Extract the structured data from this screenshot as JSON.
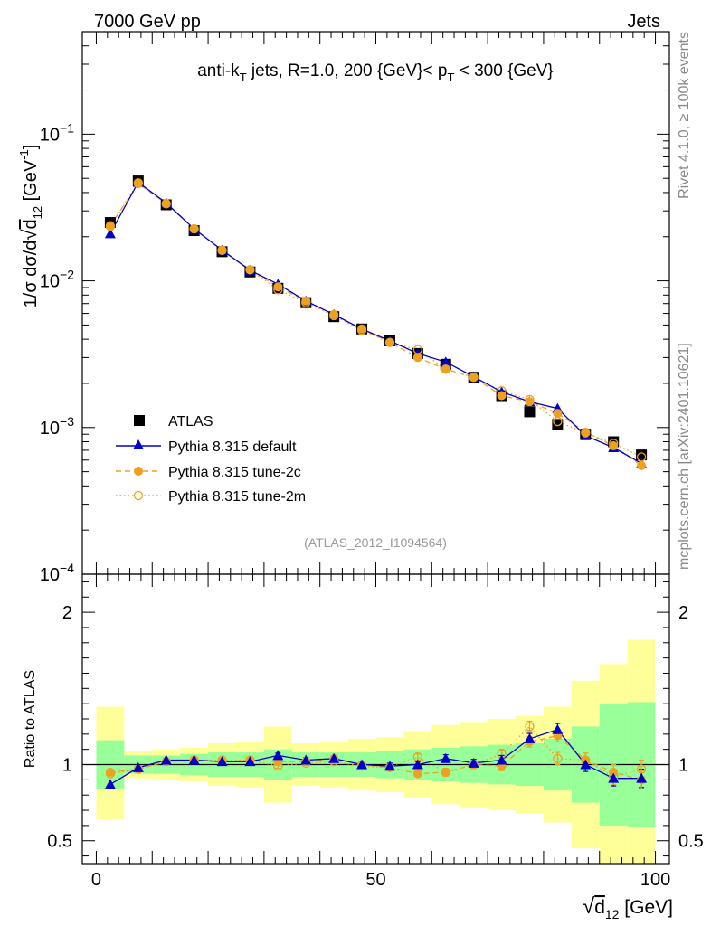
{
  "header": {
    "energy_label": "7000 GeV pp",
    "process_label": "Jets"
  },
  "side_labels": {
    "rivet": "Rivet 4.1.0, ≥ 100k events",
    "mcplots": "mcplots.cern.ch [arXiv:2401.10621]"
  },
  "chart_data": [
    {
      "type": "line",
      "panel": "main",
      "title": "anti-k_T jets, R=1.0, 200 {GeV}< p_T < 300 {GeV}",
      "title_parts": {
        "a": "anti-k",
        "a_sub": "T",
        "b": " jets, R=1.0, 200 {GeV}< p",
        "b_sub": "T",
        "c": " < 300 {GeV}"
      },
      "analysis_label": "(ATLAS_2012_I1094564)",
      "ylabel": "1/σ dσ/d√d12 [GeV⁻¹]",
      "ylabel_parts": {
        "lead": "1/σ dσ/d",
        "d": "d",
        "d_sub": "12",
        "unit": " [GeV",
        "unit_sup": "-1",
        "close": "]"
      },
      "yscale": "log",
      "ylim": [
        0.0001,
        0.5
      ],
      "xlim": [
        -2.5,
        102.5
      ],
      "y_tick_labels": [
        {
          "value": 0.1,
          "mant": "10",
          "exp": "−1"
        },
        {
          "value": 0.01,
          "mant": "10",
          "exp": "−2"
        },
        {
          "value": 0.001,
          "mant": "10",
          "exp": "−3"
        },
        {
          "value": 0.0001,
          "mant": "10",
          "exp": "−4"
        }
      ],
      "x": [
        2.5,
        7.5,
        12.5,
        17.5,
        22.5,
        27.5,
        32.5,
        37.5,
        42.5,
        47.5,
        52.5,
        57.5,
        62.5,
        67.5,
        72.5,
        77.5,
        82.5,
        87.5,
        92.5,
        97.5
      ],
      "legend_position": "lower-left",
      "series": [
        {
          "name": "ATLAS",
          "marker": "square",
          "color": "#000000",
          "line": "none",
          "values": [
            0.025,
            0.048,
            0.033,
            0.022,
            0.0158,
            0.0115,
            0.0089,
            0.0071,
            0.0057,
            0.0047,
            0.0039,
            0.0032,
            0.0027,
            0.0022,
            0.00165,
            0.00128,
            0.00105,
            0.0009,
            0.0008,
            0.00065
          ]
        },
        {
          "name": "Pythia 8.315 default",
          "marker": "triangle",
          "color": "#0000cc",
          "line": "solid",
          "values": [
            0.021,
            0.047,
            0.034,
            0.0226,
            0.0162,
            0.0118,
            0.0095,
            0.0073,
            0.0059,
            0.0047,
            0.0039,
            0.0032,
            0.0028,
            0.00222,
            0.00175,
            0.0015,
            0.00135,
            0.00088,
            0.00073,
            0.00057
          ]
        },
        {
          "name": "Pythia 8.315 tune-2c",
          "marker": "circle",
          "color": "#f0a020",
          "line": "dashed",
          "values": [
            0.0238,
            0.046,
            0.0337,
            0.0227,
            0.0161,
            0.0119,
            0.0091,
            0.0073,
            0.0059,
            0.0047,
            0.0038,
            0.003,
            0.0025,
            0.0022,
            0.00165,
            0.0015,
            0.00125,
            0.00093,
            0.00075,
            0.00055
          ]
        },
        {
          "name": "Pythia 8.315 tune-2m",
          "marker": "open-circle",
          "color": "#f0a020",
          "line": "dotted",
          "values": [
            0.0235,
            0.0465,
            0.0335,
            0.0226,
            0.0162,
            0.0119,
            0.0087,
            0.0071,
            0.0058,
            0.0046,
            0.0038,
            0.0034,
            0.0025,
            0.0022,
            0.00178,
            0.00155,
            0.0011,
            0.00092,
            0.00078,
            0.00063
          ]
        }
      ]
    },
    {
      "type": "line",
      "panel": "ratio",
      "ylabel": "Ratio to ATLAS",
      "xlabel": "√d12 [GeV]",
      "xlabel_parts": {
        "d": "d",
        "d_sub": "12",
        "unit": " [GeV]"
      },
      "ylim": [
        0.35,
        2.25
      ],
      "xlim": [
        -2.5,
        102.5
      ],
      "x_tick_labels": [
        "0",
        "50",
        "100"
      ],
      "y_tick_labels": [
        "0.5",
        "1",
        "2"
      ],
      "reference_line": 1,
      "bin_edges": [
        0,
        5,
        10,
        15,
        20,
        25,
        30,
        35,
        40,
        45,
        50,
        55,
        60,
        65,
        70,
        75,
        80,
        85,
        90,
        95,
        100
      ],
      "band_yellow": {
        "low": [
          0.64,
          0.91,
          0.9,
          0.89,
          0.86,
          0.85,
          0.75,
          0.86,
          0.85,
          0.83,
          0.82,
          0.78,
          0.74,
          0.72,
          0.7,
          0.68,
          0.62,
          0.45,
          0.32,
          0.34
        ],
        "high": [
          1.38,
          1.09,
          1.1,
          1.11,
          1.14,
          1.15,
          1.25,
          1.14,
          1.15,
          1.17,
          1.18,
          1.22,
          1.26,
          1.28,
          1.3,
          1.32,
          1.38,
          1.55,
          1.66,
          1.82
        ]
      },
      "band_green": {
        "low": [
          0.84,
          0.94,
          0.94,
          0.93,
          0.92,
          0.92,
          0.9,
          0.92,
          0.92,
          0.92,
          0.91,
          0.9,
          0.89,
          0.88,
          0.87,
          0.86,
          0.83,
          0.75,
          0.6,
          0.59
        ],
        "high": [
          1.16,
          1.06,
          1.06,
          1.07,
          1.08,
          1.08,
          1.1,
          1.08,
          1.08,
          1.08,
          1.09,
          1.1,
          1.11,
          1.12,
          1.13,
          1.14,
          1.17,
          1.25,
          1.4,
          1.41
        ]
      },
      "x": [
        2.5,
        7.5,
        12.5,
        17.5,
        22.5,
        27.5,
        32.5,
        37.5,
        42.5,
        47.5,
        52.5,
        57.5,
        62.5,
        67.5,
        72.5,
        77.5,
        82.5,
        87.5,
        92.5,
        97.5
      ],
      "series": [
        {
          "name": "Pythia 8.315 default",
          "color": "#0000cc",
          "values": [
            0.87,
            0.98,
            1.03,
            1.03,
            1.02,
            1.02,
            1.06,
            1.03,
            1.04,
            1.0,
            0.99,
            1.0,
            1.04,
            1.01,
            1.03,
            1.17,
            1.23,
            1.0,
            0.91,
            0.91
          ],
          "errors": [
            0.01,
            0.01,
            0.01,
            0.01,
            0.01,
            0.01,
            0.015,
            0.015,
            0.015,
            0.015,
            0.02,
            0.02,
            0.025,
            0.025,
            0.03,
            0.035,
            0.04,
            0.045,
            0.05,
            0.06
          ]
        },
        {
          "name": "Pythia 8.315 tune-2c",
          "color": "#f0a020",
          "values": [
            0.95,
            0.97,
            1.02,
            1.03,
            1.02,
            1.03,
            1.02,
            1.02,
            1.04,
            1.0,
            0.98,
            0.94,
            0.95,
            1.0,
            0.99,
            1.15,
            1.19,
            1.03,
            0.95,
            0.9
          ],
          "errors": [
            0.01,
            0.01,
            0.01,
            0.01,
            0.01,
            0.01,
            0.015,
            0.015,
            0.015,
            0.015,
            0.02,
            0.02,
            0.025,
            0.025,
            0.03,
            0.035,
            0.04,
            0.045,
            0.05,
            0.06
          ]
        },
        {
          "name": "Pythia 8.315 tune-2m",
          "color": "#f0a020",
          "values": [
            0.94,
            0.97,
            1.02,
            1.03,
            1.03,
            1.03,
            0.99,
            1.01,
            1.02,
            0.99,
            0.98,
            1.05,
            0.95,
            1.0,
            1.07,
            1.25,
            1.04,
            1.03,
            0.92,
            0.97
          ],
          "errors": [
            0.01,
            0.01,
            0.01,
            0.01,
            0.01,
            0.01,
            0.015,
            0.015,
            0.015,
            0.015,
            0.02,
            0.02,
            0.025,
            0.025,
            0.03,
            0.035,
            0.04,
            0.045,
            0.05,
            0.06
          ]
        }
      ]
    }
  ]
}
